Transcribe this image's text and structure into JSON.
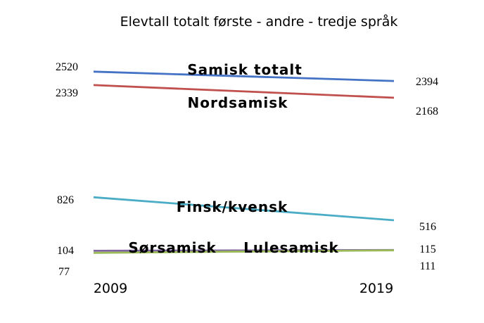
{
  "chart_data": {
    "type": "line",
    "title": "Elevtall totalt første - andre - tredje språk",
    "x": [
      "2009",
      "2019"
    ],
    "ylim": [
      0,
      2800
    ],
    "grid": false,
    "legend": "none",
    "series": [
      {
        "name": "Samisk totalt",
        "color": "#4472C4",
        "values": [
          2520,
          2394
        ],
        "start_label": "2520",
        "end_label": "2394"
      },
      {
        "name": "Nordsamisk",
        "color": "#C0504D",
        "values": [
          2339,
          2168
        ],
        "start_label": "2339",
        "end_label": "2168"
      },
      {
        "name": "Finsk/kvensk",
        "color": "#4BACC6",
        "values": [
          826,
          516
        ],
        "start_label": "826",
        "end_label": "516"
      },
      {
        "name": "Sørsamisk",
        "color": "#8064A2",
        "values": [
          104,
          115
        ],
        "start_label": "104",
        "end_label": "115"
      },
      {
        "name": "Lulesamisk",
        "color": "#9BBB59",
        "values": [
          77,
          111
        ],
        "start_label": "77",
        "end_label": "111"
      }
    ]
  }
}
